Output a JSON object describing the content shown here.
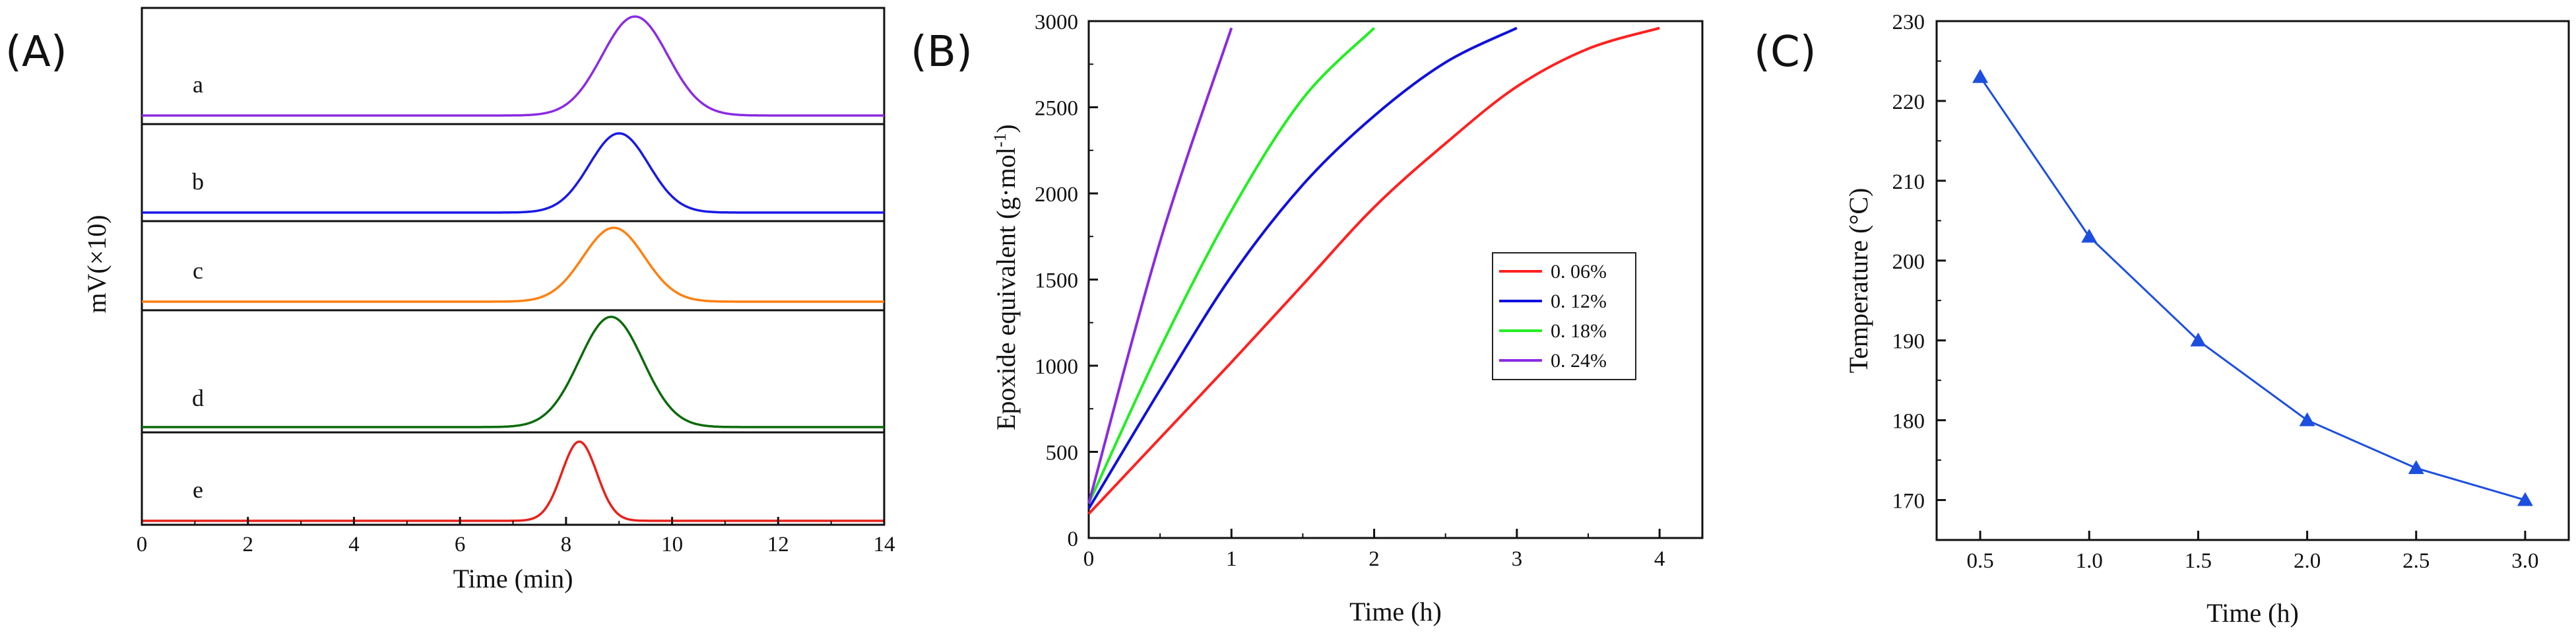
{
  "panels": {
    "a": "(A)",
    "b": "(B)",
    "c": "(C)"
  },
  "chart_data": [
    {
      "id": "A",
      "type": "line",
      "title": "",
      "xlabel": "Time (min)",
      "ylabel": "mV(×10)",
      "xlim": [
        0,
        14
      ],
      "xticks": [
        0,
        2,
        4,
        6,
        8,
        10,
        12,
        14
      ],
      "series": [
        {
          "name": "a",
          "color": "#8b2be2",
          "peak_center": 9.3,
          "peak_sigma": 0.62
        },
        {
          "name": "b",
          "color": "#1818e6",
          "peak_center": 9.0,
          "peak_sigma": 0.56
        },
        {
          "name": "c",
          "color": "#ff7f0e",
          "peak_center": 8.9,
          "peak_sigma": 0.58
        },
        {
          "name": "d",
          "color": "#0b6b0b",
          "peak_center": 8.85,
          "peak_sigma": 0.6
        },
        {
          "name": "e",
          "color": "#e8201a",
          "peak_center": 8.25,
          "peak_sigma": 0.33
        }
      ]
    },
    {
      "id": "B",
      "type": "line",
      "title": "",
      "xlabel": "Time (h)",
      "ylabel": "Epoxide equivalent (g·mol",
      "ylabel_sup": "-1",
      "ylabel_close": ")",
      "xlim": [
        0,
        4.3
      ],
      "ylim": [
        0,
        3000
      ],
      "xticks": [
        0,
        1,
        2,
        3,
        4
      ],
      "yticks": [
        0,
        500,
        1000,
        1500,
        2000,
        2500,
        3000
      ],
      "legend_position": "center-right",
      "series": [
        {
          "name": "0. 06%",
          "color": "#ff2020",
          "x": [
            0,
            0.5,
            1,
            1.5,
            2,
            2.5,
            3,
            3.5,
            4
          ],
          "y": [
            140,
            580,
            1020,
            1470,
            1920,
            2290,
            2620,
            2840,
            2960
          ]
        },
        {
          "name": "0. 12%",
          "color": "#1010dd",
          "x": [
            0,
            0.5,
            1,
            1.5,
            2,
            2.5,
            3
          ],
          "y": [
            170,
            860,
            1520,
            2050,
            2450,
            2760,
            2960
          ]
        },
        {
          "name": "0. 18%",
          "color": "#22ee22",
          "x": [
            0,
            0.5,
            1,
            1.5,
            2
          ],
          "y": [
            200,
            1100,
            1900,
            2550,
            2960
          ]
        },
        {
          "name": "0. 24%",
          "color": "#8a2be2",
          "x": [
            0,
            0.5,
            1
          ],
          "y": [
            200,
            1720,
            2960
          ]
        }
      ]
    },
    {
      "id": "C",
      "type": "line",
      "title": "",
      "xlabel": "Time (h)",
      "ylabel": "Temperature (°C)",
      "xlim": [
        0.3,
        3.2
      ],
      "ylim": [
        165,
        230
      ],
      "xticks": [
        "0.5",
        "1.0",
        "1.5",
        "2.0",
        "2.5",
        "3.0"
      ],
      "yticks": [
        170,
        180,
        190,
        200,
        210,
        220,
        230
      ],
      "series": [
        {
          "name": "Temperature",
          "color": "#1c4fe0",
          "marker": "triangle",
          "x": [
            0.5,
            1.0,
            1.5,
            2.0,
            2.5,
            3.0
          ],
          "y": [
            223,
            203,
            190,
            180,
            174,
            170
          ]
        }
      ]
    }
  ]
}
